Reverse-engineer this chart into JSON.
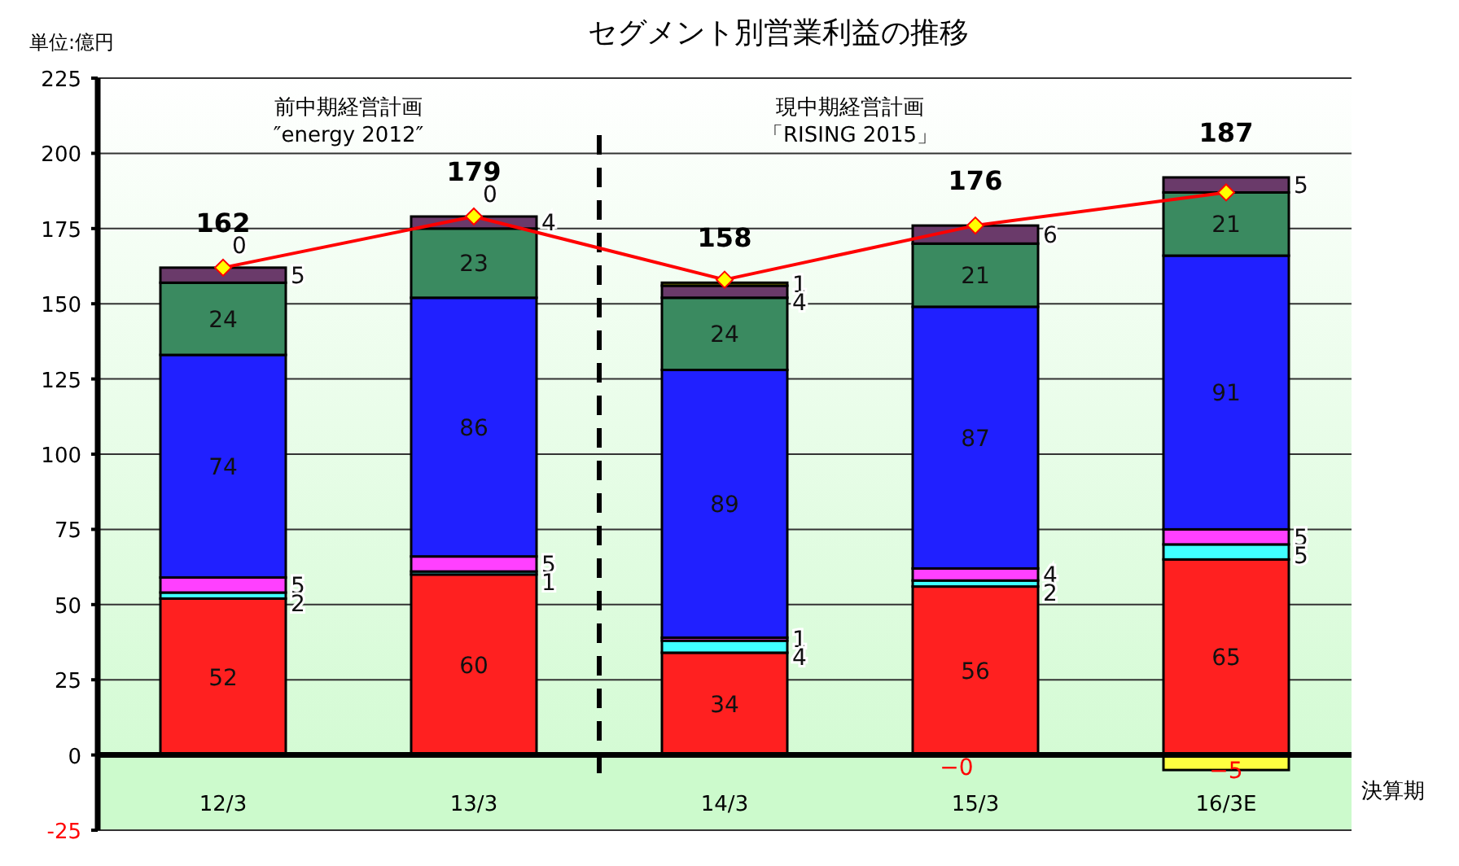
{
  "chart_data": {
    "type": "bar",
    "stacked": true,
    "title": "セグメント別営業利益の推移",
    "ylabel": "単位:億円",
    "xlabel": "決算期",
    "annotations": [
      "前中期経営計画",
      "″energy 2012″",
      "現中期経営計画",
      "「RISING 2015」",
      {
        "text": "0",
        "x": "12/3",
        "y": 162
      },
      {
        "text": "0",
        "x": "13/3",
        "y": 179
      },
      {
        "text": "−0",
        "x": "15/3",
        "y": 0
      }
    ],
    "categories": [
      "12/3",
      "13/3",
      "14/3",
      "15/3",
      "16/3E"
    ],
    "ylim": [
      -25,
      225
    ],
    "yticks": [
      -25,
      0,
      25,
      50,
      75,
      100,
      125,
      150,
      175,
      200,
      225
    ],
    "grid": "y",
    "series": [
      {
        "color": "#ff2020",
        "values": [
          52,
          60,
          34,
          56,
          65
        ],
        "value_labels": [
          "52",
          "60",
          "34",
          "56",
          "65"
        ]
      },
      {
        "color": "#ffff40",
        "values": [
          null,
          null,
          null,
          null,
          -5
        ],
        "value_labels": [
          null,
          null,
          null,
          null,
          "−5"
        ]
      },
      {
        "color": "#40ffff",
        "values": [
          2,
          1,
          4,
          2,
          5
        ],
        "value_labels": [
          "2",
          "1",
          "4",
          "2",
          "5"
        ]
      },
      {
        "color": "#ff40ff",
        "values": [
          5,
          5,
          1,
          4,
          5
        ],
        "value_labels": [
          "5",
          "5",
          "1",
          "4",
          "5"
        ]
      },
      {
        "color": "#2020ff",
        "values": [
          74,
          86,
          89,
          87,
          91
        ],
        "value_labels": [
          "74",
          "86",
          "89",
          "87",
          "91"
        ]
      },
      {
        "color": "#3a8a60",
        "values": [
          24,
          23,
          24,
          21,
          21
        ],
        "value_labels": [
          "24",
          "23",
          "24",
          "21",
          "21"
        ]
      },
      {
        "color": "#6a3a6a",
        "values": [
          5,
          4,
          4,
          6,
          5
        ],
        "value_labels": [
          "5",
          "4",
          "4",
          "6",
          "5"
        ]
      },
      {
        "color": "#808000",
        "values": [
          null,
          null,
          1,
          null,
          null
        ],
        "value_labels": [
          null,
          null,
          "1",
          null,
          null
        ]
      },
      {
        "type": "line",
        "color": "#ff0000",
        "marker": "diamond",
        "values": [
          162,
          179,
          158,
          176,
          187
        ]
      }
    ],
    "totals": [
      "162",
      "179",
      "158",
      "176",
      "187"
    ]
  }
}
